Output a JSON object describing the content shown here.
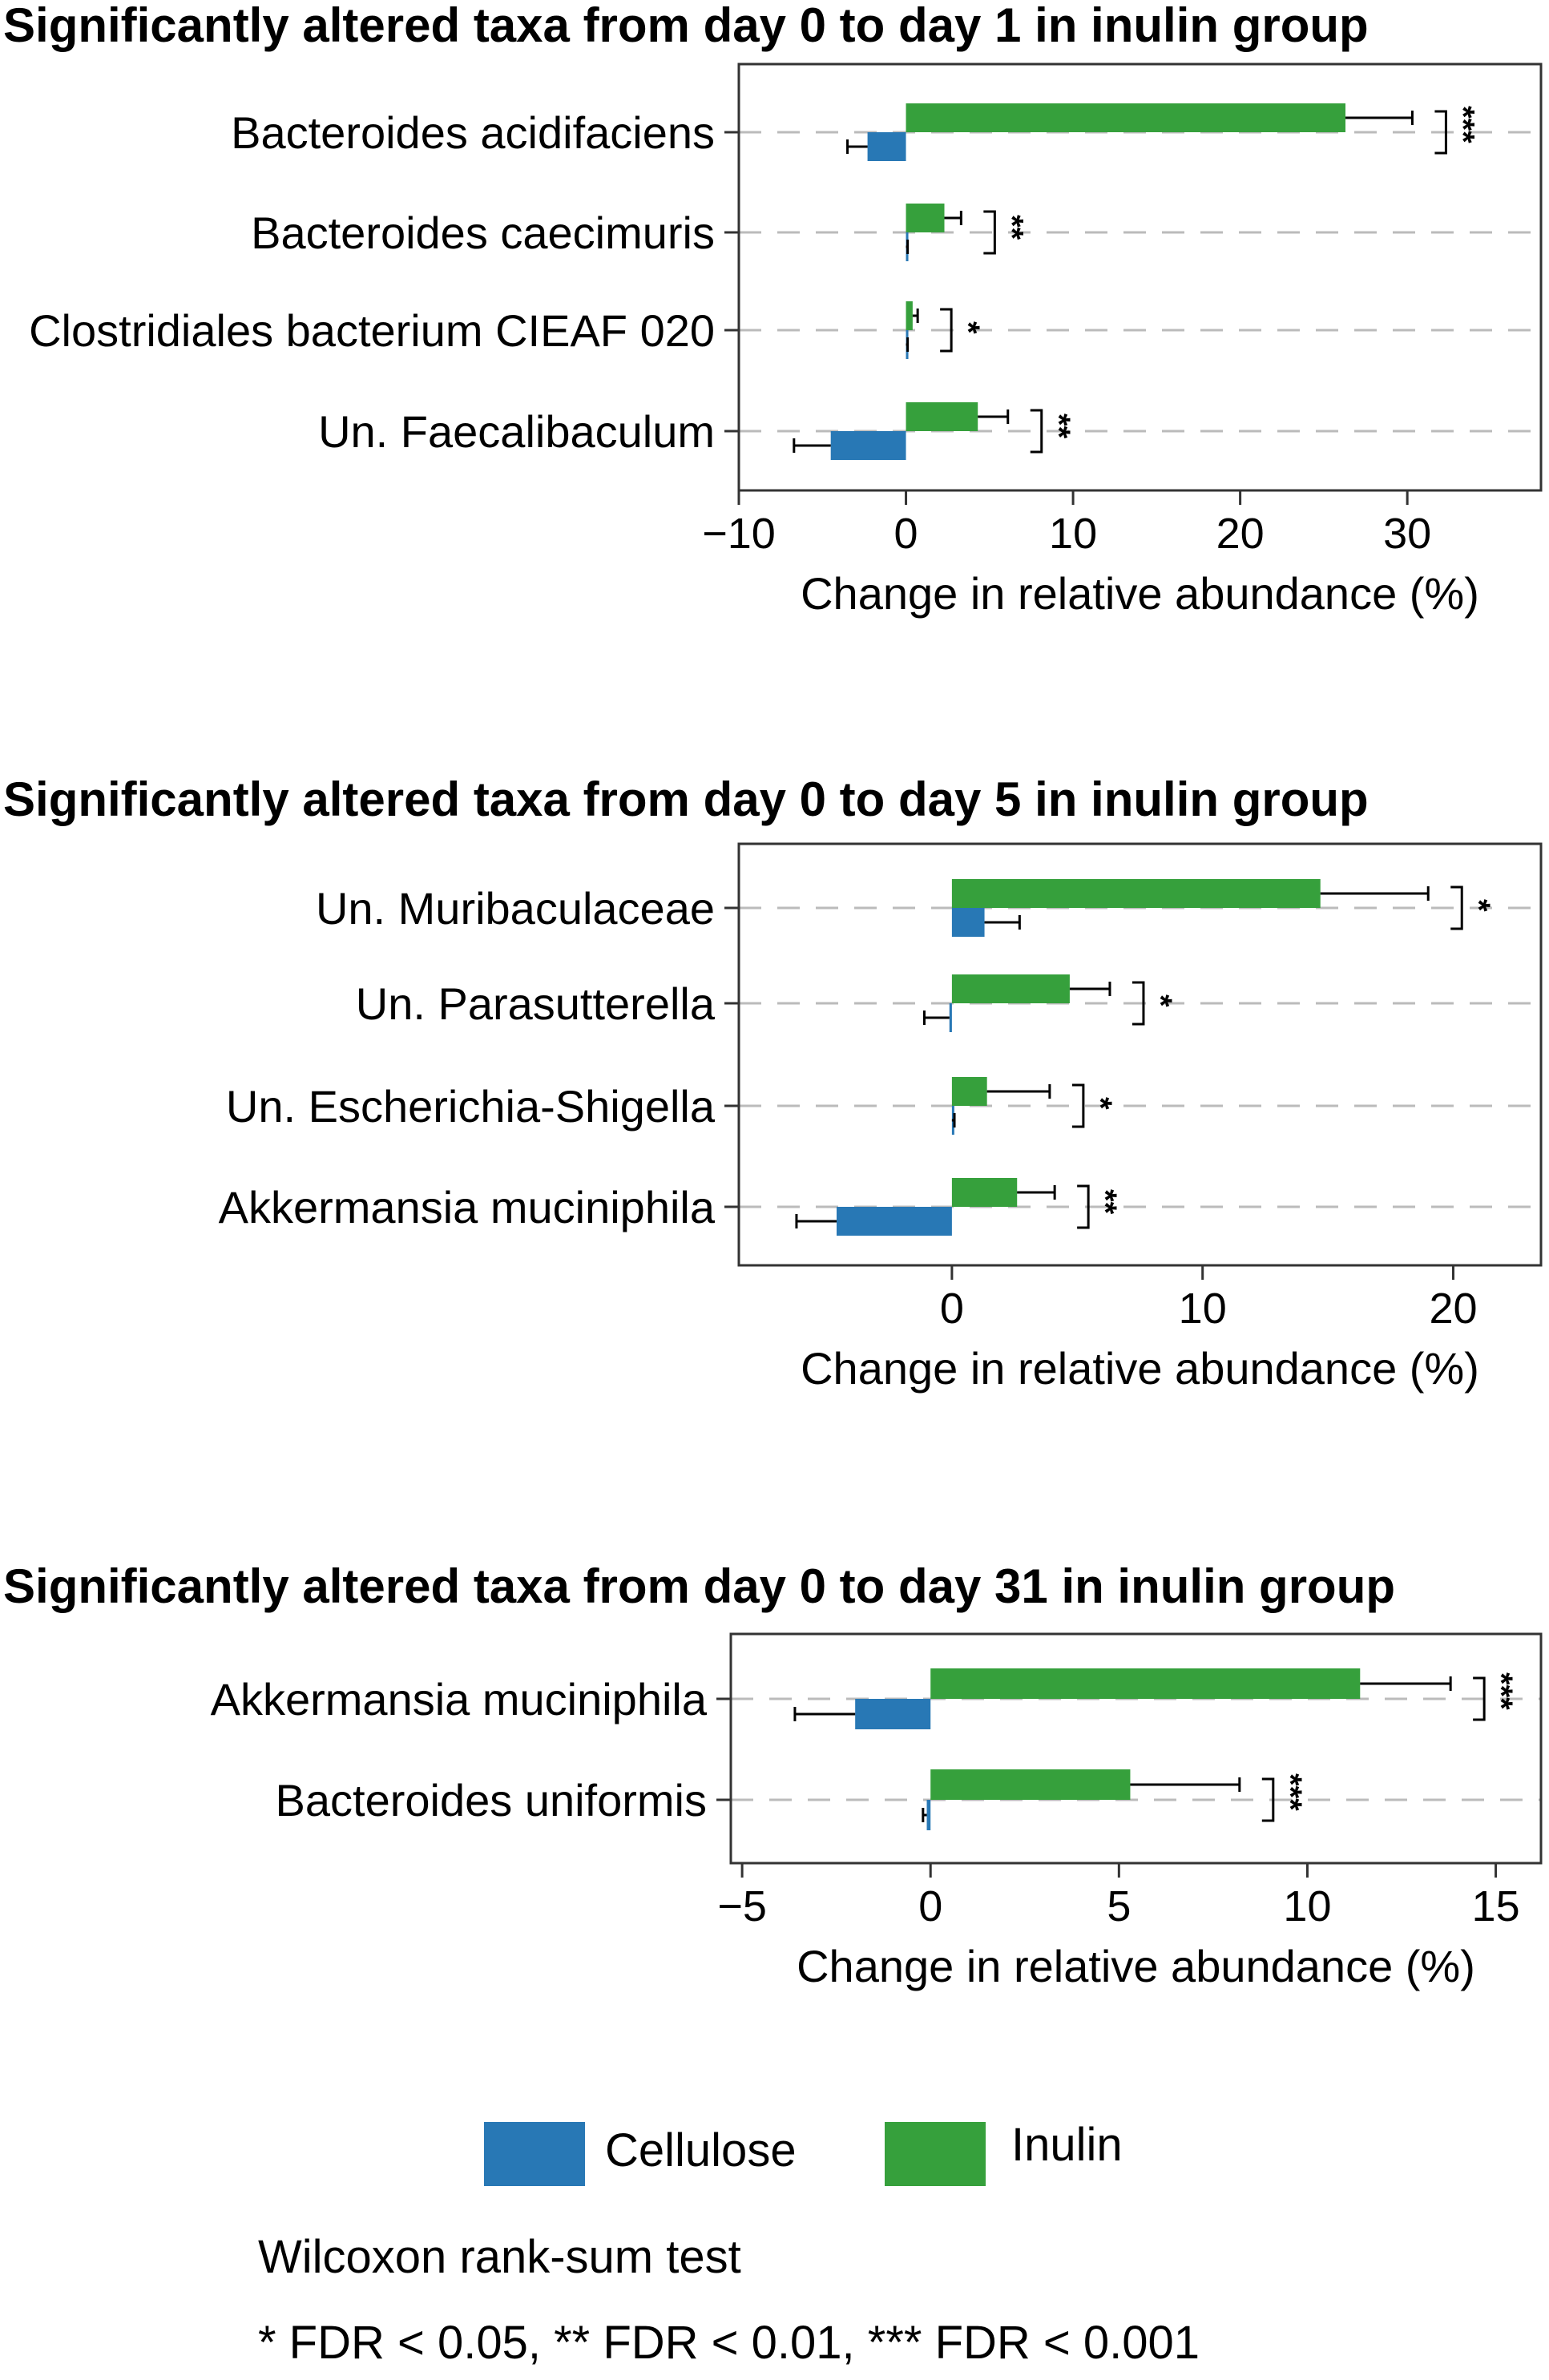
{
  "colors": {
    "cellulose": "#2878b5",
    "inulin": "#36a03c",
    "grid": "#bbbbbb",
    "axis": "#333333"
  },
  "chart_data": [
    {
      "type": "bar",
      "orientation": "horizontal",
      "title": "Significantly altered taxa from day 0 to day 1 in inulin group",
      "xlabel": "Change in relative abundance (%)",
      "xlim": [
        -10,
        38
      ],
      "xticks": [
        -10,
        0,
        10,
        20,
        30
      ],
      "xtick_labels": [
        "−10",
        "0",
        "10",
        "20",
        "30"
      ],
      "categories": [
        "Bacteroides acidifaciens",
        "Bacteroides caecimuris",
        "Clostridiales bacterium CIEAF 020",
        "Un. Faecalibaculum"
      ],
      "series": [
        {
          "name": "Cellulose",
          "values": [
            -2.3,
            0.0,
            0.0,
            -4.5
          ],
          "errors": [
            1.2,
            0.1,
            0.1,
            2.2
          ]
        },
        {
          "name": "Inulin",
          "values": [
            26.3,
            2.3,
            0.4,
            4.3
          ],
          "errors": [
            4.0,
            1.0,
            0.3,
            1.8
          ]
        }
      ],
      "significance": [
        "***",
        "**",
        "*",
        "**"
      ],
      "grid": "horizontal dashed"
    },
    {
      "type": "bar",
      "orientation": "horizontal",
      "title": "Significantly altered taxa from day 0 to day 5 in inulin group",
      "xlabel": "Change in relative abundance (%)",
      "xlim": [
        -8.5,
        23.5
      ],
      "xticks": [
        0,
        10,
        20
      ],
      "xtick_labels": [
        "0",
        "10",
        "20"
      ],
      "categories": [
        "Un. Muribaculaceae",
        "Un. Parasutterella",
        "Un. Escherichia-Shigella",
        "Akkermansia muciniphila"
      ],
      "series": [
        {
          "name": "Cellulose",
          "values": [
            1.3,
            -0.1,
            0.0,
            -4.6
          ],
          "errors": [
            1.4,
            1.0,
            0.1,
            1.6
          ]
        },
        {
          "name": "Inulin",
          "values": [
            14.7,
            4.7,
            1.4,
            2.6
          ],
          "errors": [
            4.3,
            1.6,
            2.5,
            1.5
          ]
        }
      ],
      "significance": [
        "*",
        "*",
        "*",
        "**"
      ],
      "grid": "horizontal dashed"
    },
    {
      "type": "bar",
      "orientation": "horizontal",
      "title": "Significantly altered taxa from day 0 to day 31 in inulin group",
      "xlabel": "Change in relative abundance (%)",
      "xlim": [
        -5.3,
        16.2
      ],
      "xticks": [
        -5,
        0,
        5,
        10,
        15
      ],
      "xtick_labels": [
        "−5",
        "0",
        "5",
        "10",
        "15"
      ],
      "categories": [
        "Akkermansia muciniphila",
        "Bacteroides uniformis"
      ],
      "series": [
        {
          "name": "Cellulose",
          "values": [
            -2.0,
            -0.1
          ],
          "errors": [
            1.6,
            0.1
          ]
        },
        {
          "name": "Inulin",
          "values": [
            11.4,
            5.3
          ],
          "errors": [
            2.4,
            2.9
          ]
        }
      ],
      "significance": [
        "***",
        "***"
      ],
      "grid": "horizontal dashed"
    }
  ],
  "legend": {
    "items": [
      {
        "name": "Cellulose",
        "color": "#2878b5"
      },
      {
        "name": "Inulin",
        "color": "#36a03c"
      }
    ]
  },
  "notes": {
    "test": "Wilcoxon rank-sum test",
    "fdr": "* FDR < 0.05, ** FDR < 0.01, *** FDR < 0.001"
  }
}
